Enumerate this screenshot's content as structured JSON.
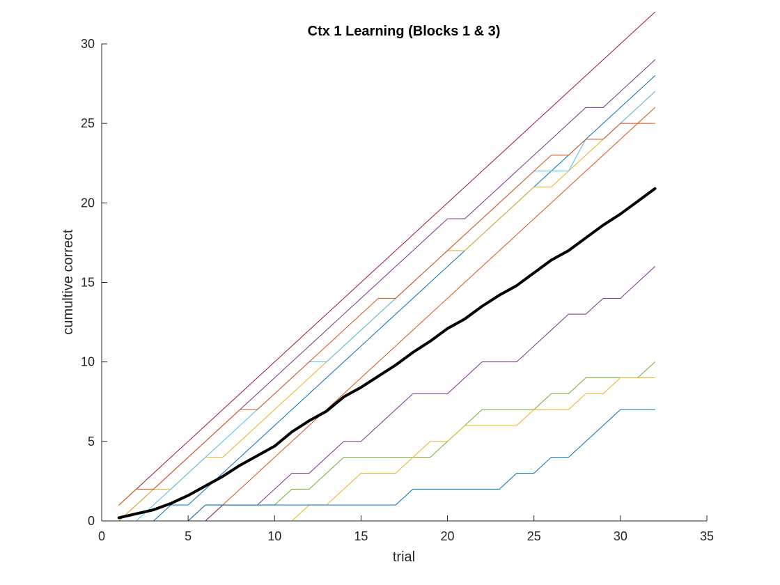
{
  "chart_data": {
    "type": "line",
    "title": "Ctx 1 Learning (Blocks 1 & 3)",
    "xlabel": "trial",
    "ylabel": "cumultive correct",
    "xlim": [
      0,
      35
    ],
    "ylim": [
      0,
      30
    ],
    "xticks": [
      0,
      5,
      10,
      15,
      20,
      25,
      30,
      35
    ],
    "yticks": [
      0,
      5,
      10,
      15,
      20,
      25,
      30
    ],
    "grid": false,
    "x": [
      1,
      2,
      3,
      4,
      5,
      6,
      7,
      8,
      9,
      10,
      11,
      12,
      13,
      14,
      15,
      16,
      17,
      18,
      19,
      20,
      21,
      22,
      23,
      24,
      25,
      26,
      27,
      28,
      29,
      30,
      31,
      32
    ],
    "series": [
      {
        "color": "#A2142F",
        "width": 1,
        "values": [
          1,
          2,
          3,
          4,
          5,
          6,
          7,
          8,
          9,
          10,
          11,
          12,
          13,
          14,
          15,
          16,
          17,
          18,
          19,
          20,
          21,
          22,
          23,
          24,
          25,
          26,
          27,
          28,
          29,
          30,
          31,
          32
        ]
      },
      {
        "color": "#7E2F8E",
        "width": 1,
        "values": [
          0,
          1,
          2,
          3,
          4,
          5,
          6,
          7,
          8,
          9,
          10,
          11,
          12,
          13,
          14,
          15,
          16,
          17,
          18,
          19,
          19,
          20,
          21,
          22,
          23,
          24,
          25,
          26,
          26,
          27,
          28,
          29
        ]
      },
      {
        "color": "#0072BD",
        "width": 1,
        "values": [
          0,
          0,
          0,
          1,
          1,
          2,
          3,
          4,
          5,
          6,
          7,
          8,
          9,
          10,
          11,
          12,
          13,
          14,
          15,
          16,
          17,
          18,
          19,
          20,
          21,
          22,
          23,
          24,
          25,
          26,
          27,
          28
        ]
      },
      {
        "color": "#EDB120",
        "width": 1,
        "values": [
          0,
          1,
          2,
          2,
          3,
          4,
          4,
          5,
          6,
          7,
          8,
          9,
          10,
          11,
          12,
          13,
          14,
          15,
          16,
          17,
          17,
          18,
          19,
          20,
          21,
          21,
          22,
          23,
          24,
          25,
          26,
          27
        ]
      },
      {
        "color": "#4DBEEE",
        "width": 1,
        "values": [
          0,
          0,
          1,
          2,
          3,
          4,
          5,
          6,
          7,
          8,
          9,
          10,
          10,
          11,
          12,
          13,
          14,
          15,
          16,
          17,
          18,
          19,
          20,
          21,
          22,
          22,
          22,
          24,
          24,
          25,
          26,
          27
        ]
      },
      {
        "color": "#D95319",
        "width": 1,
        "values": [
          1,
          2,
          2,
          3,
          4,
          5,
          6,
          7,
          7,
          8,
          9,
          10,
          11,
          12,
          13,
          14,
          14,
          15,
          16,
          17,
          18,
          19,
          20,
          21,
          22,
          23,
          23,
          24,
          24,
          25,
          25,
          25
        ]
      },
      {
        "color": "#D95319",
        "width": 1,
        "values": [
          0,
          0,
          0,
          0,
          0,
          0,
          1,
          2,
          3,
          4,
          5,
          6,
          7,
          8,
          9,
          10,
          11,
          12,
          13,
          14,
          15,
          16,
          17,
          18,
          19,
          20,
          21,
          22,
          23,
          24,
          25,
          26
        ]
      },
      {
        "color": "#7E2F8E",
        "width": 1,
        "values": [
          0,
          0,
          0,
          0,
          0,
          0,
          1,
          1,
          1,
          2,
          3,
          3,
          4,
          5,
          5,
          6,
          7,
          8,
          8,
          8,
          9,
          10,
          10,
          10,
          11,
          12,
          13,
          13,
          14,
          14,
          15,
          16
        ]
      },
      {
        "color": "#77AC30",
        "width": 1,
        "values": [
          0,
          0,
          0,
          0,
          0,
          1,
          1,
          1,
          1,
          1,
          2,
          2,
          3,
          4,
          4,
          4,
          4,
          4,
          4,
          5,
          6,
          7,
          7,
          7,
          7,
          8,
          8,
          9,
          9,
          9,
          9,
          10
        ]
      },
      {
        "color": "#EDB120",
        "width": 1,
        "values": [
          0,
          0,
          0,
          0,
          0,
          0,
          0,
          0,
          0,
          0,
          0,
          1,
          1,
          2,
          3,
          3,
          3,
          4,
          5,
          5,
          6,
          6,
          6,
          6,
          7,
          7,
          7,
          8,
          8,
          9,
          9,
          9
        ]
      },
      {
        "color": "#0072BD",
        "width": 1,
        "values": [
          0,
          0,
          0,
          0,
          0,
          1,
          1,
          1,
          1,
          1,
          1,
          1,
          1,
          1,
          1,
          1,
          1,
          2,
          2,
          2,
          2,
          2,
          2,
          3,
          3,
          4,
          4,
          5,
          6,
          7,
          7,
          7
        ]
      },
      {
        "color": "#000000",
        "width": 4,
        "values": [
          0.2,
          0.45,
          0.7,
          1.1,
          1.6,
          2.2,
          2.8,
          3.5,
          4.1,
          4.7,
          5.6,
          6.3,
          6.9,
          7.8,
          8.4,
          9.1,
          9.8,
          10.6,
          11.3,
          12.1,
          12.7,
          13.5,
          14.2,
          14.8,
          15.6,
          16.4,
          17.0,
          17.8,
          18.6,
          19.3,
          20.1,
          20.9
        ]
      }
    ]
  }
}
